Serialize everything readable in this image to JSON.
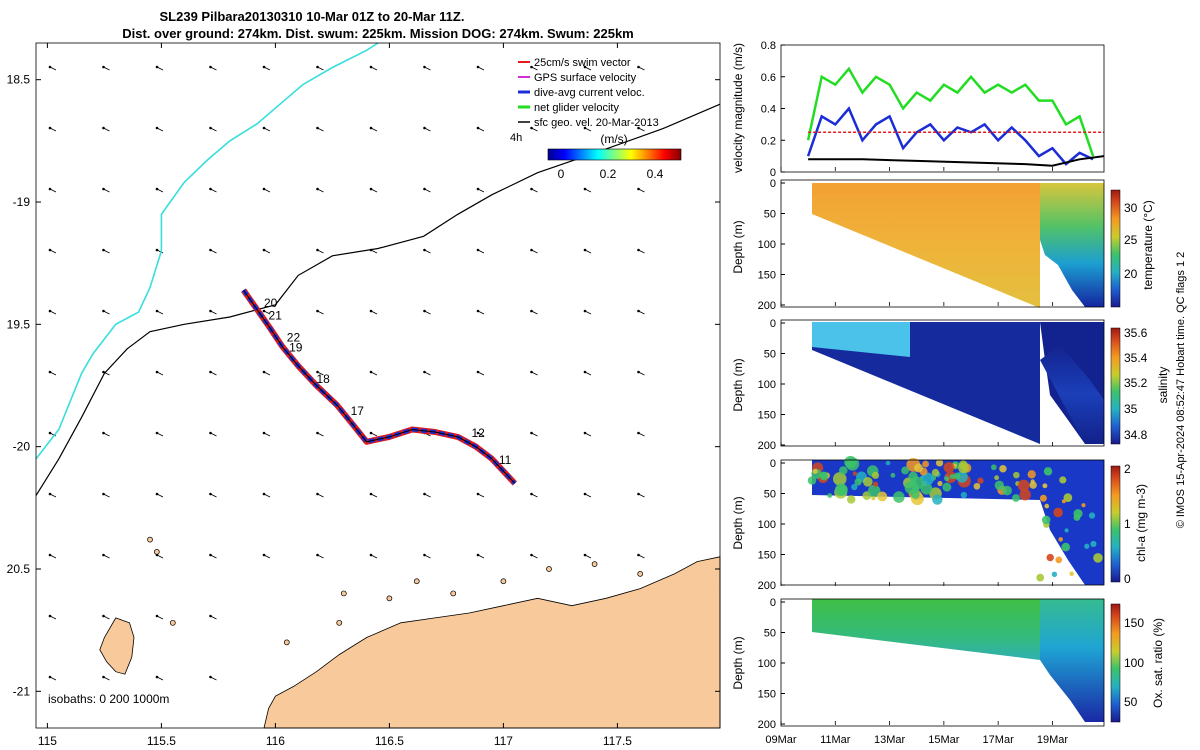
{
  "title": {
    "line1": "SL239 Pilbara20130310 10-Mar 01Z to 20-Mar 11Z.",
    "line2": "Dist. over ground: 274km. Dist. swum: 225km. Mission DOG: 274km. Swum: 225km"
  },
  "credit": "© IMOS 15-Apr-2024 08:52:47 Hobart time. QC flags 1  2",
  "colors": {
    "land": "#f8c99a",
    "swim": "#e41a1c",
    "gps": "#d62ad6",
    "dive": "#1a2dd6",
    "net": "#22dd22",
    "sfc": "#000000",
    "coast_track": "#37dede"
  },
  "chart_data": [
    {
      "name": "map",
      "type": "scatter",
      "xlim": [
        114.95,
        117.95
      ],
      "ylim": [
        -21.15,
        -18.35
      ],
      "xticks": [
        115,
        115.5,
        116,
        116.5,
        117,
        117.5
      ],
      "xtick_labels": [
        "115",
        "115.5",
        "116",
        "116.5",
        "117",
        "117.5"
      ],
      "yticks": [
        -18.5,
        -19,
        -19.5,
        -20,
        -20.5,
        -21
      ],
      "ytick_labels": [
        "18.5",
        "-19",
        "19.5",
        "-20",
        "20.5",
        "-21"
      ],
      "legend": [
        "25cm/s swim vector",
        "GPS surface velocity",
        "dive-avg current veloc.",
        "net glider velocity",
        "sfc geo. vel. 20-Mar-2013"
      ],
      "legend_extra": "4h",
      "colorbar": {
        "label": "(m/s)",
        "ticks": [
          "0",
          "0.2",
          "0.4"
        ],
        "range": [
          0,
          0.5
        ]
      },
      "isobaths": "isobaths: 0   200  1000m",
      "day_labels": [
        {
          "text": "20",
          "lon": 115.95,
          "lat": -19.43
        },
        {
          "text": "21",
          "lon": 115.97,
          "lat": -19.48
        },
        {
          "text": "22",
          "lon": 116.05,
          "lat": -19.57
        },
        {
          "text": "19",
          "lon": 116.06,
          "lat": -19.61
        },
        {
          "text": "18",
          "lon": 116.18,
          "lat": -19.74
        },
        {
          "text": "17",
          "lon": 116.33,
          "lat": -19.87
        },
        {
          "text": "12",
          "lon": 116.86,
          "lat": -19.96
        },
        {
          "text": "11",
          "lon": 116.98,
          "lat": -20.07
        }
      ],
      "track": [
        [
          115.86,
          -19.36
        ],
        [
          115.92,
          -19.44
        ],
        [
          115.98,
          -19.52
        ],
        [
          116.03,
          -19.59
        ],
        [
          116.1,
          -19.67
        ],
        [
          116.18,
          -19.75
        ],
        [
          116.27,
          -19.83
        ],
        [
          116.34,
          -19.91
        ],
        [
          116.4,
          -19.98
        ],
        [
          116.5,
          -19.96
        ],
        [
          116.6,
          -19.93
        ],
        [
          116.7,
          -19.94
        ],
        [
          116.8,
          -19.96
        ],
        [
          116.88,
          -20.0
        ],
        [
          116.95,
          -20.05
        ],
        [
          117.05,
          -20.15
        ]
      ],
      "shelf_break": [
        [
          114.95,
          -20.2
        ],
        [
          115.05,
          -20.05
        ],
        [
          115.15,
          -19.88
        ],
        [
          115.25,
          -19.7
        ],
        [
          115.35,
          -19.6
        ],
        [
          115.45,
          -19.53
        ],
        [
          115.6,
          -19.5
        ],
        [
          115.8,
          -19.47
        ],
        [
          116.0,
          -19.42
        ],
        [
          116.1,
          -19.3
        ],
        [
          116.25,
          -19.22
        ],
        [
          116.45,
          -19.19
        ],
        [
          116.65,
          -19.14
        ],
        [
          116.8,
          -19.05
        ],
        [
          116.95,
          -18.97
        ],
        [
          117.15,
          -18.88
        ],
        [
          117.4,
          -18.8
        ],
        [
          117.7,
          -18.7
        ],
        [
          117.95,
          -18.6
        ]
      ],
      "cyan_line": [
        [
          114.95,
          -20.05
        ],
        [
          115.05,
          -19.93
        ],
        [
          115.15,
          -19.7
        ],
        [
          115.2,
          -19.62
        ],
        [
          115.3,
          -19.5
        ],
        [
          115.4,
          -19.45
        ],
        [
          115.45,
          -19.35
        ],
        [
          115.5,
          -19.2
        ],
        [
          115.5,
          -19.05
        ],
        [
          115.6,
          -18.92
        ],
        [
          115.7,
          -18.83
        ],
        [
          115.8,
          -18.75
        ],
        [
          115.92,
          -18.68
        ],
        [
          116.02,
          -18.6
        ],
        [
          116.12,
          -18.52
        ],
        [
          116.25,
          -18.45
        ],
        [
          116.4,
          -18.38
        ],
        [
          116.45,
          -18.35
        ]
      ],
      "coast": [
        [
          115.95,
          -21.15
        ],
        [
          115.97,
          -21.07
        ],
        [
          116.0,
          -21.02
        ],
        [
          116.08,
          -20.98
        ],
        [
          116.18,
          -20.92
        ],
        [
          116.28,
          -20.85
        ],
        [
          116.4,
          -20.78
        ],
        [
          116.55,
          -20.72
        ],
        [
          116.7,
          -20.7
        ],
        [
          116.85,
          -20.68
        ],
        [
          117.0,
          -20.65
        ],
        [
          117.15,
          -20.62
        ],
        [
          117.3,
          -20.65
        ],
        [
          117.45,
          -20.62
        ],
        [
          117.6,
          -20.58
        ],
        [
          117.75,
          -20.52
        ],
        [
          117.85,
          -20.47
        ],
        [
          117.95,
          -20.45
        ],
        [
          117.95,
          -21.15
        ]
      ],
      "island": [
        [
          115.3,
          -20.7
        ],
        [
          115.36,
          -20.72
        ],
        [
          115.38,
          -20.78
        ],
        [
          115.37,
          -20.86
        ],
        [
          115.34,
          -20.93
        ],
        [
          115.3,
          -20.92
        ],
        [
          115.26,
          -20.88
        ],
        [
          115.23,
          -20.83
        ],
        [
          115.25,
          -20.78
        ]
      ]
    },
    {
      "name": "velocity",
      "type": "line",
      "ylabel": "velocity magnitude (m/s)",
      "ylim": [
        0,
        0.8
      ],
      "yticks": [
        "0",
        "0.2",
        "0.4",
        "0.6",
        "0.8"
      ],
      "x_range_days": [
        9,
        20.9
      ],
      "series": [
        {
          "name": "net glider velocity",
          "color": "#22dd22",
          "x": [
            10.0,
            10.5,
            11.0,
            11.5,
            12.0,
            12.5,
            13.0,
            13.5,
            14.0,
            14.5,
            15.0,
            15.5,
            16.0,
            16.5,
            17.0,
            17.5,
            18.0,
            18.5,
            19.0,
            19.5,
            20.0,
            20.5
          ],
          "values": [
            0.2,
            0.6,
            0.55,
            0.65,
            0.5,
            0.6,
            0.55,
            0.4,
            0.5,
            0.45,
            0.55,
            0.5,
            0.6,
            0.5,
            0.55,
            0.5,
            0.55,
            0.45,
            0.45,
            0.3,
            0.35,
            0.1
          ]
        },
        {
          "name": "dive-avg current veloc.",
          "color": "#1a2dd6",
          "x": [
            10.0,
            10.5,
            11.0,
            11.5,
            12.0,
            12.5,
            13.0,
            13.5,
            14.0,
            14.5,
            15.0,
            15.5,
            16.0,
            16.5,
            17.0,
            17.5,
            18.0,
            18.5,
            19.0,
            19.5,
            20.0,
            20.5
          ],
          "values": [
            0.1,
            0.35,
            0.3,
            0.4,
            0.2,
            0.3,
            0.35,
            0.15,
            0.25,
            0.3,
            0.2,
            0.28,
            0.25,
            0.3,
            0.2,
            0.28,
            0.2,
            0.1,
            0.15,
            0.05,
            0.12,
            0.08
          ]
        },
        {
          "name": "swim",
          "color": "#e41a1c",
          "x": [
            10.0,
            20.9
          ],
          "values": [
            0.25,
            0.25
          ]
        },
        {
          "name": "sfc geo. vel.",
          "color": "#000000",
          "x": [
            10.0,
            12.0,
            14.0,
            16.0,
            18.0,
            19.0,
            20.0,
            20.9
          ],
          "values": [
            0.08,
            0.08,
            0.07,
            0.06,
            0.05,
            0.04,
            0.08,
            0.1
          ]
        }
      ]
    },
    {
      "name": "temperature",
      "type": "heatmap",
      "ylabel": "Depth (m)",
      "ylim": [
        200,
        0
      ],
      "yticks": [
        "0",
        "50",
        "100",
        "150",
        "200"
      ],
      "colorbar_label": "temperature (°C)",
      "colorbar_ticks": [
        "30",
        "25",
        "20"
      ],
      "colorbar_range": [
        15,
        33
      ]
    },
    {
      "name": "salinity",
      "type": "heatmap",
      "ylabel": "Depth (m)",
      "ylim": [
        200,
        0
      ],
      "yticks": [
        "0",
        "50",
        "100",
        "150",
        "200"
      ],
      "colorbar_label": "salinity",
      "colorbar_ticks": [
        "35.6",
        "35.4",
        "35.2",
        "35",
        "34.8"
      ],
      "colorbar_range": [
        34.7,
        35.65
      ]
    },
    {
      "name": "chlorophyll",
      "type": "heatmap",
      "ylabel": "Depth (m)",
      "ylim": [
        200,
        0
      ],
      "yticks": [
        "0",
        "50",
        "100",
        "150",
        "200"
      ],
      "colorbar_label": "chl-a (mg m-3)",
      "colorbar_ticks": [
        "2",
        "1",
        "0"
      ],
      "colorbar_range": [
        0,
        2
      ]
    },
    {
      "name": "oxygen",
      "type": "heatmap",
      "ylabel": "Depth (m)",
      "ylim": [
        200,
        0
      ],
      "yticks": [
        "0",
        "50",
        "100",
        "150",
        "200"
      ],
      "colorbar_label": "Ox. sat. ratio (%)",
      "colorbar_ticks": [
        "150",
        "100",
        "50"
      ],
      "colorbar_range": [
        30,
        175
      ],
      "xtick_labels": [
        "09Mar",
        "11Mar",
        "13Mar",
        "15Mar",
        "17Mar",
        "19Mar"
      ]
    }
  ]
}
